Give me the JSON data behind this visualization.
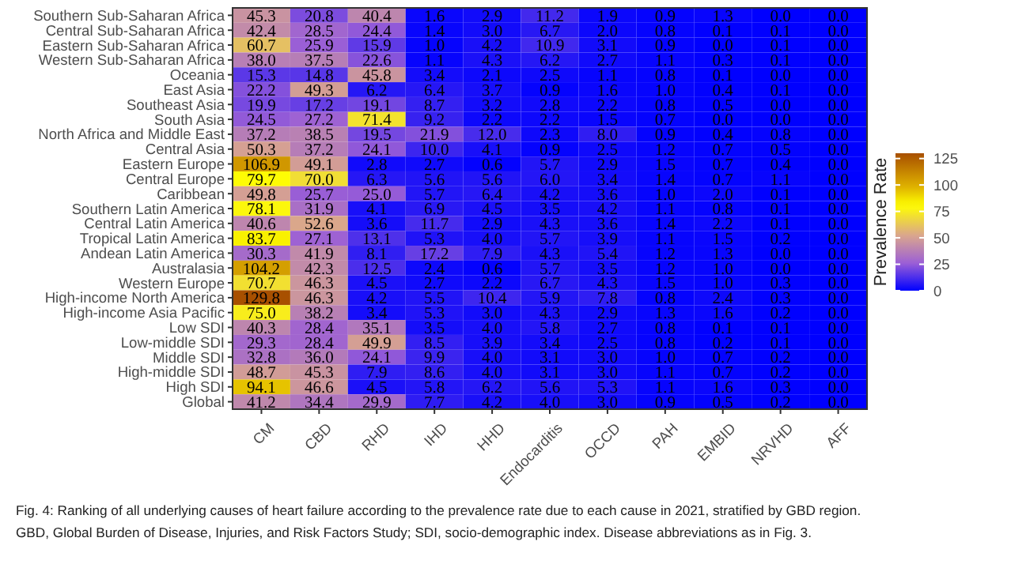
{
  "chart_data": {
    "type": "heatmap",
    "categories": [
      "CM",
      "CBD",
      "RHD",
      "IHD",
      "HHD",
      "Endocarditis",
      "OCCD",
      "PAH",
      "EMBID",
      "NRVHD",
      "AFF"
    ],
    "y_categories": [
      "Southern Sub-Saharan Africa",
      "Central Sub-Saharan Africa",
      "Eastern Sub-Saharan Africa",
      "Western Sub-Saharan Africa",
      "Oceania",
      "East Asia",
      "Southeast Asia",
      "South Asia",
      "North Africa and Middle East",
      "Central Asia",
      "Eastern Europe",
      "Central Europe",
      "Caribbean",
      "Southern Latin America",
      "Central Latin America",
      "Tropical Latin America",
      "Andean Latin America",
      "Australasia",
      "Western Europe",
      "High-income North America",
      "High-income Asia Pacific",
      "Low SDI",
      "Low-middle SDI",
      "Middle SDI",
      "High-middle SDI",
      "High SDI",
      "Global"
    ],
    "cells": [
      [
        45.3,
        20.8,
        40.4,
        1.6,
        2.9,
        11.2,
        1.9,
        0.9,
        1.3,
        0.0,
        0.0
      ],
      [
        42.4,
        28.5,
        24.4,
        1.4,
        3.0,
        6.7,
        2.0,
        0.8,
        0.1,
        0.1,
        0.0
      ],
      [
        60.7,
        25.9,
        15.9,
        1.0,
        4.2,
        10.9,
        3.1,
        0.9,
        0.0,
        0.1,
        0.0
      ],
      [
        38.0,
        37.5,
        22.6,
        1.1,
        4.3,
        6.2,
        2.7,
        1.1,
        0.3,
        0.1,
        0.0
      ],
      [
        15.3,
        14.8,
        45.8,
        3.4,
        2.1,
        2.5,
        1.1,
        0.8,
        0.1,
        0.0,
        0.0
      ],
      [
        22.2,
        49.3,
        6.2,
        6.4,
        3.7,
        0.9,
        1.6,
        1.0,
        0.4,
        0.1,
        0.0
      ],
      [
        19.9,
        17.2,
        19.1,
        8.7,
        3.2,
        2.8,
        2.2,
        0.8,
        0.5,
        0.0,
        0.0
      ],
      [
        24.5,
        27.2,
        71.4,
        9.2,
        2.2,
        2.2,
        1.5,
        0.7,
        0.0,
        0.0,
        0.0
      ],
      [
        37.2,
        38.5,
        19.5,
        21.9,
        12.0,
        2.3,
        8.0,
        0.9,
        0.4,
        0.8,
        0.0
      ],
      [
        50.3,
        37.2,
        24.1,
        10.0,
        4.1,
        0.9,
        2.5,
        1.2,
        0.7,
        0.5,
        0.0
      ],
      [
        106.9,
        49.1,
        2.8,
        2.7,
        0.6,
        5.7,
        2.9,
        1.5,
        0.7,
        0.4,
        0.0
      ],
      [
        79.7,
        70.0,
        6.3,
        5.6,
        5.6,
        6.0,
        3.4,
        1.4,
        0.7,
        1.1,
        0.0
      ],
      [
        49.8,
        25.7,
        25.0,
        5.7,
        6.4,
        4.2,
        3.6,
        1.0,
        2.0,
        0.1,
        0.0
      ],
      [
        78.1,
        31.9,
        4.1,
        6.9,
        4.5,
        3.5,
        4.2,
        1.1,
        0.8,
        0.1,
        0.0
      ],
      [
        40.6,
        52.6,
        3.6,
        11.7,
        2.9,
        4.3,
        3.6,
        1.4,
        2.2,
        0.1,
        0.0
      ],
      [
        83.7,
        27.1,
        13.1,
        5.3,
        4.0,
        5.7,
        3.9,
        1.1,
        1.5,
        0.2,
        0.0
      ],
      [
        30.3,
        41.9,
        8.1,
        17.2,
        7.9,
        4.3,
        5.4,
        1.2,
        1.3,
        0.0,
        0.0
      ],
      [
        104.2,
        42.3,
        12.5,
        2.4,
        0.6,
        5.7,
        3.5,
        1.2,
        1.0,
        0.0,
        0.0
      ],
      [
        70.7,
        46.3,
        4.5,
        2.7,
        2.2,
        6.7,
        4.3,
        1.5,
        1.0,
        0.3,
        0.0
      ],
      [
        129.8,
        46.3,
        4.2,
        5.5,
        10.4,
        5.9,
        7.8,
        0.8,
        2.4,
        0.3,
        0.0
      ],
      [
        75.0,
        38.2,
        3.4,
        5.3,
        3.0,
        4.3,
        2.9,
        1.3,
        1.6,
        0.2,
        0.0
      ],
      [
        40.3,
        28.4,
        35.1,
        3.5,
        4.0,
        5.8,
        2.7,
        0.8,
        0.1,
        0.1,
        0.0
      ],
      [
        29.3,
        28.4,
        49.9,
        8.5,
        3.9,
        3.4,
        2.5,
        0.8,
        0.2,
        0.1,
        0.0
      ],
      [
        32.8,
        36.0,
        24.1,
        9.9,
        4.0,
        3.1,
        3.0,
        1.0,
        0.7,
        0.2,
        0.0
      ],
      [
        48.7,
        45.3,
        7.9,
        8.6,
        4.0,
        3.1,
        3.0,
        1.1,
        0.7,
        0.2,
        0.0
      ],
      [
        94.1,
        46.6,
        4.5,
        5.8,
        6.2,
        5.6,
        5.3,
        1.1,
        1.6,
        0.3,
        0.0
      ],
      [
        41.2,
        34.4,
        29.9,
        7.7,
        4.2,
        4.0,
        3.0,
        0.9,
        0.5,
        0.2,
        0.0
      ]
    ],
    "cell_labels": [
      [
        "45.3",
        "20.8",
        "40.4",
        "1.6",
        "2.9",
        "11.2",
        "1.9",
        "0.9",
        "1.3",
        "0.0",
        "0.0"
      ],
      [
        "42.4",
        "28.5",
        "24.4",
        "1.4",
        "3.0",
        "6.7",
        "2.0",
        "0.8",
        "0.1",
        "0.1",
        "0.0"
      ],
      [
        "60.7",
        "25.9",
        "15.9",
        "1.0",
        "4.2",
        "10.9",
        "3.1",
        "0.9",
        "0.0",
        "0.1",
        "0.0"
      ],
      [
        "38.0",
        "37.5",
        "22.6",
        "1.1",
        "4.3",
        "6.2",
        "2.7",
        "1.1",
        "0.3",
        "0.1",
        "0.0"
      ],
      [
        "15.3",
        "14.8",
        "45.8",
        "3.4",
        "2.1",
        "2.5",
        "1.1",
        "0.8",
        "0.1",
        "0.0",
        "0.0"
      ],
      [
        "22.2",
        "49.3",
        "6.2",
        "6.4",
        "3.7",
        "0.9",
        "1.6",
        "1.0",
        "0.4",
        "0.1",
        "0.0"
      ],
      [
        "19.9",
        "17.2",
        "19.1",
        "8.7",
        "3.2",
        "2.8",
        "2.2",
        "0.8",
        "0.5",
        "0.0",
        "0.0"
      ],
      [
        "24.5",
        "27.2",
        "71.4",
        "9.2",
        "2.2",
        "2.2",
        "1.5",
        "0.7",
        "0.0",
        "0.0",
        "0.0"
      ],
      [
        "37.2",
        "38.5",
        "19.5",
        "21.9",
        "12.0",
        "2.3",
        "8.0",
        "0.9",
        "0.4",
        "0.8",
        "0.0"
      ],
      [
        "50.3",
        "37.2",
        "24.1",
        "10.0",
        "4.1",
        "0.9",
        "2.5",
        "1.2",
        "0.7",
        "0.5",
        "0.0"
      ],
      [
        "106.9",
        "49.1",
        "2.8",
        "2.7",
        "0.6",
        "5.7",
        "2.9",
        "1.5",
        "0.7",
        "0.4",
        "0.0"
      ],
      [
        "79.7",
        "70.0",
        "6.3",
        "5.6",
        "5.6",
        "6.0",
        "3.4",
        "1.4",
        "0.7",
        "1.1",
        "0.0"
      ],
      [
        "49.8",
        "25.7",
        "25.0",
        "5.7",
        "6.4",
        "4.2",
        "3.6",
        "1.0",
        "2.0",
        "0.1",
        "0.0"
      ],
      [
        "78.1",
        "31.9",
        "4.1",
        "6.9",
        "4.5",
        "3.5",
        "4.2",
        "1.1",
        "0.8",
        "0.1",
        "0.0"
      ],
      [
        "40.6",
        "52.6",
        "3.6",
        "11.7",
        "2.9",
        "4.3",
        "3.6",
        "1.4",
        "2.2",
        "0.1",
        "0.0"
      ],
      [
        "83.7",
        "27.1",
        "13.1",
        "5.3",
        "4.0",
        "5.7",
        "3.9",
        "1.1",
        "1.5",
        "0.2",
        "0.0"
      ],
      [
        "30.3",
        "41.9",
        "8.1",
        "17.2",
        "7.9",
        "4.3",
        "5.4",
        "1.2",
        "1.3",
        "0.0",
        "0.0"
      ],
      [
        "104.2",
        "42.3",
        "12.5",
        "2.4",
        "0.6",
        "5.7",
        "3.5",
        "1.2",
        "1.0",
        "0.0",
        "0.0"
      ],
      [
        "70.7",
        "46.3",
        "4.5",
        "2.7",
        "2.2",
        "6.7",
        "4.3",
        "1.5",
        "1.0",
        "0.3",
        "0.0"
      ],
      [
        "129.8",
        "46.3",
        "4.2",
        "5.5",
        "10.4",
        "5.9",
        "7.8",
        "0.8",
        "2.4",
        "0.3",
        "0.0"
      ],
      [
        "75.0",
        "38.2",
        "3.4",
        "5.3",
        "3.0",
        "4.3",
        "2.9",
        "1.3",
        "1.6",
        "0.2",
        "0.0"
      ],
      [
        "40.3",
        "28.4",
        "35.1",
        "3.5",
        "4.0",
        "5.8",
        "2.7",
        "0.8",
        "0.1",
        "0.1",
        "0.0"
      ],
      [
        "29.3",
        "28.4",
        "49.9",
        "8.5",
        "3.9",
        "3.4",
        "2.5",
        "0.8",
        "0.2",
        "0.1",
        "0.0"
      ],
      [
        "32.8",
        "36.0",
        "24.1",
        "9.9",
        "4.0",
        "3.1",
        "3.0",
        "1.0",
        "0.7",
        "0.2",
        "0.0"
      ],
      [
        "48.7",
        "45.3",
        "7.9",
        "8.6",
        "4.0",
        "3.1",
        "3.0",
        "1.1",
        "0.7",
        "0.2",
        "0.0"
      ],
      [
        "94.1",
        "46.6",
        "4.5",
        "5.8",
        "6.2",
        "5.6",
        "5.3",
        "1.1",
        "1.6",
        "0.3",
        "0.0"
      ],
      [
        "41.2",
        "34.4",
        "29.9",
        "7.7",
        "4.2",
        "4.0",
        "3.0",
        "0.9",
        "0.5",
        "0.2",
        "0.0"
      ]
    ],
    "clabel": "Prevalence Rate",
    "clim": [
      0,
      130
    ],
    "cticks": [
      0,
      25,
      50,
      75,
      100,
      125
    ],
    "annotations": [
      "Fig. 4: Ranking of all underlying causes of heart failure according to the prevalence rate due to each cause in 2021, stratified by GBD region.",
      "GBD, Global Burden of Disease, Injuries, and Risk Factors Study; SDI, socio-demographic index. Disease abbreviations as in Fig. 3."
    ]
  }
}
